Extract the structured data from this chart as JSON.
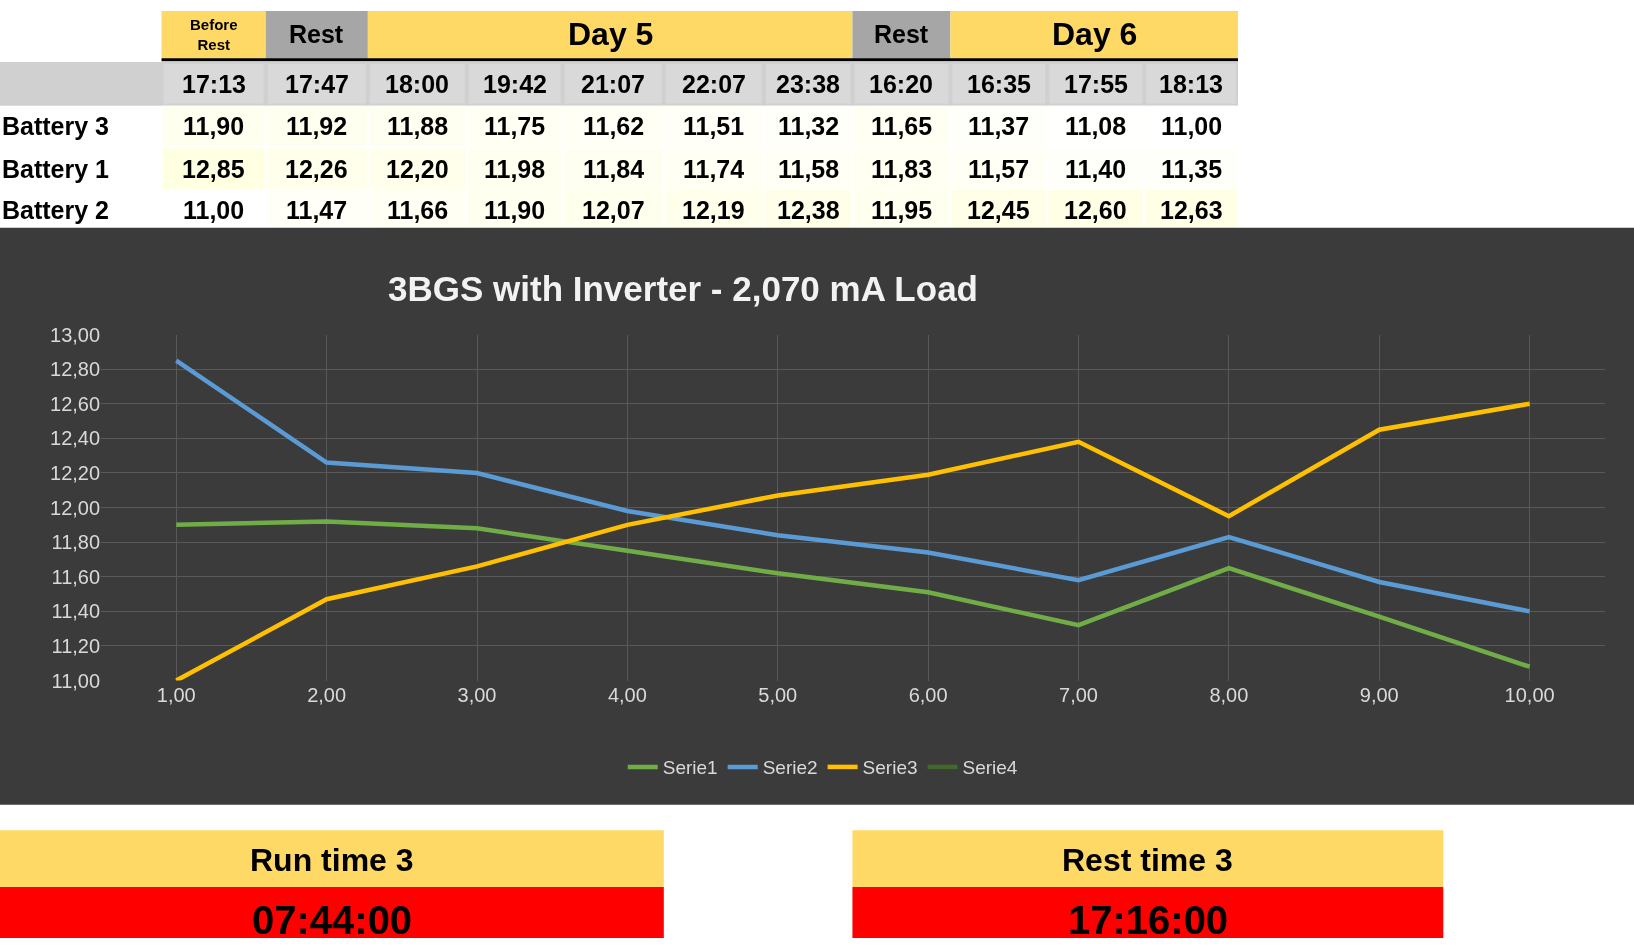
{
  "chart_data": [
    {
      "type": "heatmap",
      "annotations": [
        "Before Rest",
        "Rest",
        "Day 5",
        "Rest",
        "Day 6"
      ],
      "categories": [
        "17:13",
        "17:47",
        "18:00",
        "19:42",
        "21:07",
        "22:07",
        "23:38",
        "16:20",
        "16:35",
        "17:55",
        "18:13"
      ],
      "y_categories": [
        "Battery 3",
        "Battery 1",
        "Battery 2"
      ],
      "cells": [
        [
          11.9,
          11.92,
          11.88,
          11.75,
          11.62,
          11.51,
          11.32,
          11.65,
          11.37,
          11.08,
          11.0
        ],
        [
          12.85,
          12.26,
          12.2,
          11.98,
          11.84,
          11.74,
          11.58,
          11.83,
          11.57,
          11.4,
          11.35
        ],
        [
          11.0,
          11.47,
          11.66,
          11.9,
          12.07,
          12.19,
          12.38,
          11.95,
          12.45,
          12.6,
          12.63
        ]
      ],
      "cell_labels": [
        [
          "11,90",
          "11,92",
          "11,88",
          "11,75",
          "11,62",
          "11,51",
          "11,32",
          "11,65",
          "11,37",
          "11,08",
          "11,00"
        ],
        [
          "12,85",
          "12,26",
          "12,20",
          "11,98",
          "11,84",
          "11,74",
          "11,58",
          "11,83",
          "11,57",
          "11,40",
          "11,35"
        ],
        [
          "11,00",
          "11,47",
          "11,66",
          "11,90",
          "12,07",
          "12,19",
          "12,38",
          "11,95",
          "12,45",
          "12,60",
          "12,63"
        ]
      ]
    },
    {
      "type": "line",
      "title": "3BGS with Inverter - 2,070 mA Load",
      "x": [
        1,
        2,
        3,
        4,
        5,
        6,
        7,
        8,
        9,
        10
      ],
      "xlim": [
        0.5,
        10.5
      ],
      "xticks": [
        {
          "value": 1,
          "label": "1,00"
        },
        {
          "value": 2,
          "label": "2,00"
        },
        {
          "value": 3,
          "label": "3,00"
        },
        {
          "value": 4,
          "label": "4,00"
        },
        {
          "value": 5,
          "label": "5,00"
        },
        {
          "value": 6,
          "label": "6,00"
        },
        {
          "value": 7,
          "label": "7,00"
        },
        {
          "value": 8,
          "label": "8,00"
        },
        {
          "value": 9,
          "label": "9,00"
        },
        {
          "value": 10,
          "label": "10,00"
        }
      ],
      "ylim": [
        11,
        13
      ],
      "yticks": [
        {
          "value": 11,
          "label": "11,00"
        },
        {
          "value": 11.2,
          "label": "11,20"
        },
        {
          "value": 11.4,
          "label": "11,40"
        },
        {
          "value": 11.6,
          "label": "11,60"
        },
        {
          "value": 11.8,
          "label": "11,80"
        },
        {
          "value": 12,
          "label": "12,00"
        },
        {
          "value": 12.2,
          "label": "12,20"
        },
        {
          "value": 12.4,
          "label": "12,40"
        },
        {
          "value": 12.6,
          "label": "12,60"
        },
        {
          "value": 12.8,
          "label": "12,80"
        },
        {
          "value": 13,
          "label": "13,00"
        }
      ],
      "series": [
        {
          "name": "Serie1",
          "color": "#70ad47",
          "values": [
            11.9,
            11.92,
            11.88,
            11.75,
            11.62,
            11.51,
            11.32,
            11.65,
            11.37,
            11.08
          ]
        },
        {
          "name": "Serie2",
          "color": "#5b9bd5",
          "values": [
            12.85,
            12.26,
            12.2,
            11.98,
            11.84,
            11.74,
            11.58,
            11.83,
            11.57,
            11.4
          ]
        },
        {
          "name": "Serie3",
          "color": "#ffc000",
          "values": [
            11.0,
            11.47,
            11.66,
            11.9,
            12.07,
            12.19,
            12.38,
            11.95,
            12.45,
            12.6
          ]
        },
        {
          "name": "Serie4",
          "color": "#43682b",
          "values": [
            null,
            null,
            null,
            null,
            null,
            null,
            null,
            null,
            null,
            null
          ]
        }
      ],
      "grid": true,
      "legend": "bottom",
      "marker": "none",
      "line_style": "solid",
      "annotations": [
        "Run time 3",
        "07:44:00",
        "Rest time 3",
        "17:16:00"
      ]
    }
  ]
}
